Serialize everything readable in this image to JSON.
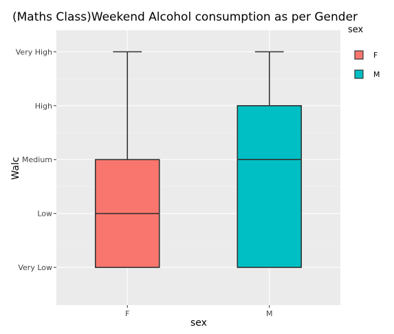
{
  "chart_data": {
    "type": "box",
    "title": "(Maths Class)Weekend Alcohol consumption as per Gender",
    "xlabel": "sex",
    "ylabel": "Walc",
    "categories": [
      "F",
      "M"
    ],
    "y_tick_labels": [
      "Very Low",
      "Low",
      "Medium",
      "High",
      "Very High"
    ],
    "y_tick_values": [
      1,
      2,
      3,
      4,
      5
    ],
    "ylim": [
      0.3,
      5.4
    ],
    "grid": true,
    "series": [
      {
        "name": "F",
        "color": "#F8766D",
        "min": 1,
        "q1": 1,
        "median": 2,
        "q3": 3,
        "max": 5
      },
      {
        "name": "M",
        "color": "#00BFC4",
        "min": 1,
        "q1": 1,
        "median": 3,
        "q3": 4,
        "max": 5
      }
    ],
    "legend": {
      "title": "sex",
      "placement": "right",
      "items": [
        {
          "label": "F",
          "color": "#F8766D"
        },
        {
          "label": "M",
          "color": "#00BFC4"
        }
      ]
    }
  }
}
